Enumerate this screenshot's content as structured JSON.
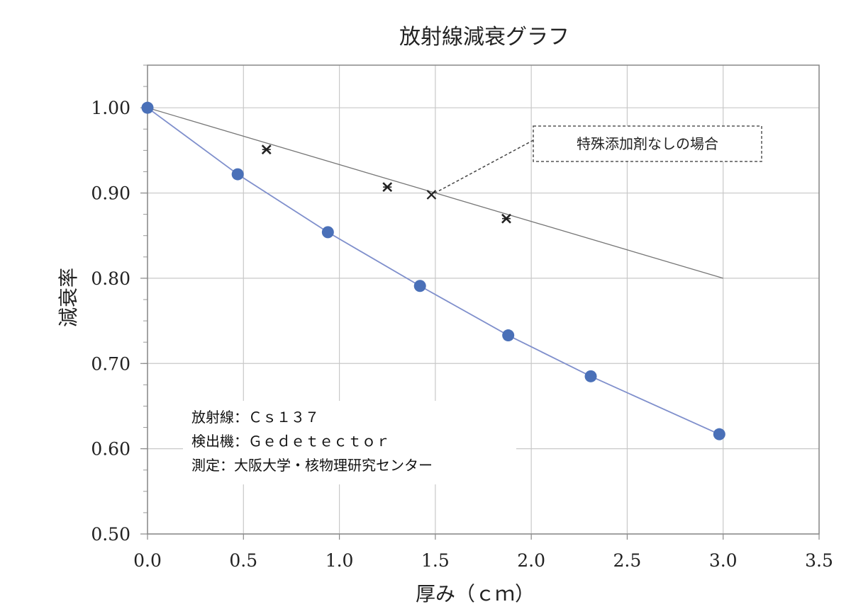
{
  "chart_data": {
    "type": "line",
    "title": "放射線減衰グラフ",
    "xlabel": "厚み（ｃｍ）",
    "ylabel": "減衰率",
    "xlim": [
      0,
      3.5
    ],
    "ylim": [
      0.5,
      1.05
    ],
    "x_ticks": [
      "0.0",
      "0.5",
      "1.0",
      "1.5",
      "2.0",
      "2.5",
      "3.0",
      "3.5"
    ],
    "y_ticks": [
      "0.50",
      "0.60",
      "0.70",
      "0.80",
      "0.90",
      "1.00"
    ],
    "grid": true,
    "series": [
      {
        "marker": "circle",
        "color": "#4a70b8",
        "line_color": "#7f8fcc",
        "x": [
          0.0,
          0.47,
          0.94,
          1.42,
          1.88,
          2.31,
          2.98
        ],
        "y": [
          1.0,
          0.922,
          0.854,
          0.791,
          0.733,
          0.685,
          0.617
        ]
      },
      {
        "marker": "x",
        "color": "#222222",
        "line_color": "#777777",
        "points_x": [
          0.62,
          1.25,
          1.87
        ],
        "points_y": [
          0.951,
          0.907,
          0.87
        ],
        "line_x": [
          0.0,
          3.0
        ],
        "line_y": [
          1.0,
          0.8
        ]
      }
    ],
    "annotation": {
      "text": "特殊添加剤なしの場合",
      "target_x": 1.48,
      "target_y": 0.898
    },
    "info_lines": [
      "放射線：Ｃｓ１３７",
      "検出機：Ｇｅｄｅｔｅｃｔｏｒ",
      "測定：大阪大学・核物理研究センター"
    ]
  }
}
